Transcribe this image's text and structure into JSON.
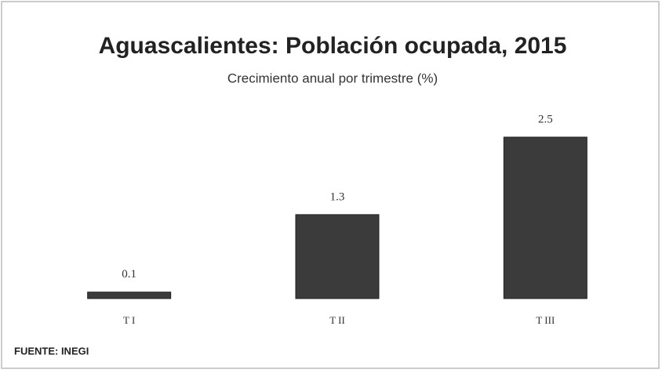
{
  "chart_data": {
    "type": "bar",
    "title": "Aguascalientes: Población ocupada, 2015",
    "subtitle": "Crecimiento anual por trimestre (%)",
    "categories": [
      "T I",
      "T II",
      "T III"
    ],
    "values": [
      0.1,
      1.3,
      2.5
    ],
    "color": "#3b3b3b",
    "source": "FUENTE: INEGI"
  }
}
